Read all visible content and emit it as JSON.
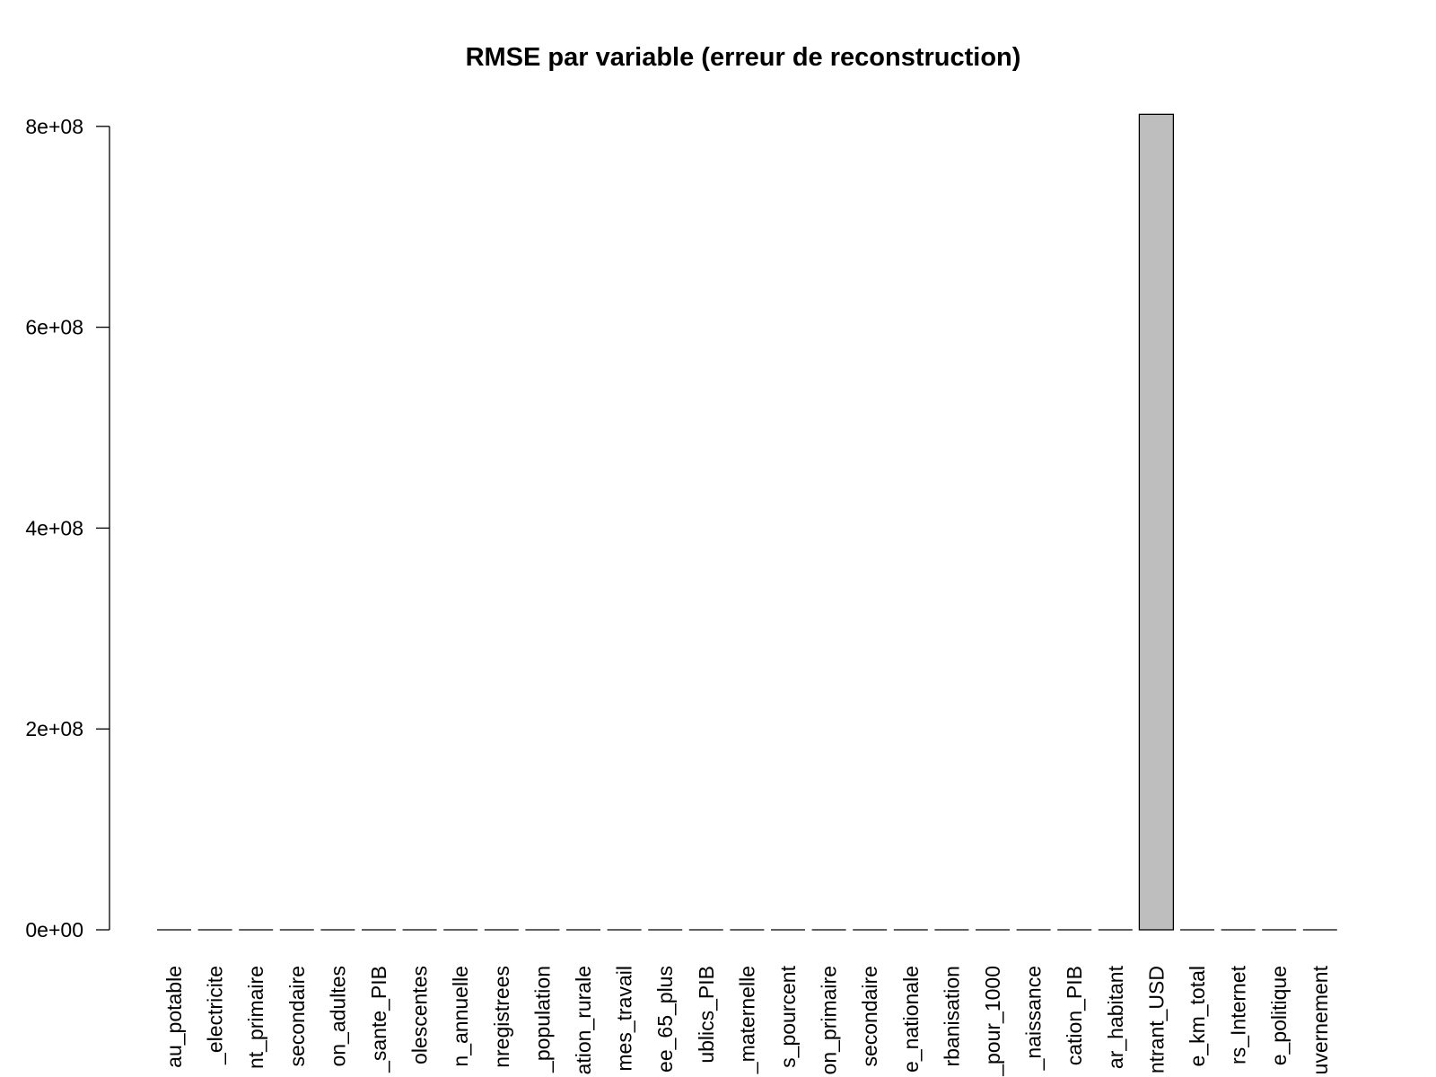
{
  "chart_data": {
    "type": "bar",
    "title": "RMSE par variable (erreur de reconstruction)",
    "xlabel": "",
    "ylabel": "",
    "ylim": [
      0,
      815000000
    ],
    "yticks": [
      0,
      200000000,
      400000000,
      600000000,
      800000000
    ],
    "ytick_labels": [
      "0e+00",
      "2e+08",
      "4e+08",
      "6e+08",
      "8e+08"
    ],
    "categories": [
      "au_potable",
      "_electricite",
      "nt_primaire",
      "secondaire",
      "on_adultes",
      "_sante_PIB",
      "olescentes",
      "n_annuelle",
      "nregistrees",
      "_population",
      "ation_rurale",
      "mes_travail",
      "ee_65_plus",
      "ublics_PIB",
      "_maternelle",
      "s_pourcent",
      "on_primaire",
      "secondaire",
      "e_nationale",
      "rbanisation",
      "_pour_1000",
      "_naissance",
      "cation_PIB",
      "ar_habitant",
      "ntrant_USD",
      "e_km_total",
      "rs_Internet",
      "e_politique",
      "uvernement"
    ],
    "values": [
      0,
      0,
      0,
      0,
      0,
      0,
      0,
      0,
      0,
      0,
      0,
      0,
      0,
      0,
      0,
      0,
      0,
      0,
      0,
      0,
      0,
      0,
      0,
      0,
      812000000,
      0,
      0,
      0,
      0
    ],
    "grid": false,
    "bar_color": "#bebebe"
  }
}
